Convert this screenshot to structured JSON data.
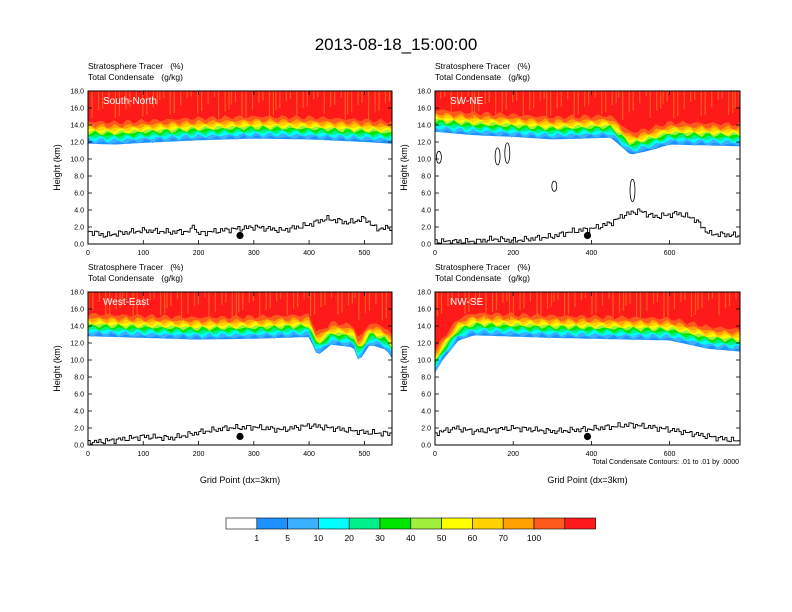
{
  "title": "2013-08-18_15:00:00",
  "colors": {
    "levels": [
      "#ffffff",
      "#1e90ff",
      "#3ab0ff",
      "#00ffff",
      "#00f08c",
      "#00e600",
      "#a0f03c",
      "#ffff00",
      "#ffd200",
      "#ffa000",
      "#ff5a1e",
      "#ff1a1a"
    ],
    "frame": "#000000"
  },
  "chart_data": [
    {
      "type": "heatmap",
      "panel_label": "South-North",
      "field_line1": "Stratosphere Tracer   (%)",
      "field_line2": "Total Condensate   (g/kg)",
      "ylabel": "Height (km)",
      "xlabel": "",
      "xlim": [
        0,
        550
      ],
      "ylim": [
        0,
        18
      ],
      "xticks": [
        "0",
        "100",
        "200",
        "300",
        "400",
        "500"
      ],
      "yticks": [
        "0.0",
        "2.0",
        "4.0",
        "6.0",
        "8.0",
        "10.0",
        "12.0",
        "14.0",
        "16.0",
        "18.0"
      ],
      "tracer_base_km": [
        [
          0,
          11.8
        ],
        [
          50,
          11.7
        ],
        [
          100,
          11.9
        ],
        [
          200,
          12.2
        ],
        [
          300,
          12.4
        ],
        [
          400,
          12.3
        ],
        [
          500,
          12.0
        ],
        [
          550,
          11.8
        ]
      ],
      "terrain_km": [
        [
          0,
          1.5
        ],
        [
          30,
          1.0
        ],
        [
          60,
          1.3
        ],
        [
          100,
          1.6
        ],
        [
          150,
          1.4
        ],
        [
          185,
          1.5
        ],
        [
          190,
          2.7
        ],
        [
          195,
          1.2
        ],
        [
          240,
          1.6
        ],
        [
          300,
          2.0
        ],
        [
          350,
          1.6
        ],
        [
          400,
          2.3
        ],
        [
          430,
          3.0
        ],
        [
          470,
          2.5
        ],
        [
          500,
          3.0
        ],
        [
          520,
          1.8
        ],
        [
          550,
          1.9
        ]
      ],
      "marker": [
        275,
        1.0
      ],
      "condensate_contours": []
    },
    {
      "type": "heatmap",
      "panel_label": "SW-NE",
      "field_line1": "Stratosphere Tracer   (%)",
      "field_line2": "Total Condensate   (g/kg)",
      "ylabel": "Height (km)",
      "xlabel": "",
      "xlim": [
        0,
        780
      ],
      "ylim": [
        0,
        18
      ],
      "xticks": [
        "0",
        "200",
        "400",
        "600"
      ],
      "yticks": [
        "0.0",
        "2.0",
        "4.0",
        "6.0",
        "8.0",
        "10.0",
        "12.0",
        "14.0",
        "16.0",
        "18.0"
      ],
      "tracer_base_km": [
        [
          0,
          13.2
        ],
        [
          100,
          12.8
        ],
        [
          200,
          12.6
        ],
        [
          300,
          12.3
        ],
        [
          450,
          12.5
        ],
        [
          500,
          10.5
        ],
        [
          550,
          11.0
        ],
        [
          600,
          11.7
        ],
        [
          780,
          11.5
        ]
      ],
      "terrain_km": [
        [
          0,
          0.3
        ],
        [
          100,
          0.3
        ],
        [
          150,
          0.6
        ],
        [
          200,
          0.4
        ],
        [
          300,
          0.9
        ],
        [
          350,
          1.5
        ],
        [
          400,
          1.8
        ],
        [
          450,
          2.5
        ],
        [
          480,
          3.4
        ],
        [
          520,
          3.9
        ],
        [
          560,
          3.2
        ],
        [
          620,
          3.6
        ],
        [
          660,
          3.0
        ],
        [
          700,
          1.2
        ],
        [
          780,
          1.0
        ]
      ],
      "marker": [
        390,
        1.0
      ],
      "condensate_contours": [
        [
          10,
          10.2,
          0.7
        ],
        [
          160,
          10.3,
          1.0
        ],
        [
          185,
          10.7,
          1.2
        ],
        [
          305,
          6.8,
          0.6
        ],
        [
          505,
          6.3,
          1.3
        ]
      ]
    },
    {
      "type": "heatmap",
      "panel_label": "West-East",
      "field_line1": "Stratosphere Tracer   (%)",
      "field_line2": "Total Condensate   (g/kg)",
      "ylabel": "Height (km)",
      "xlabel": "Grid Point (dx=3km)",
      "xlim": [
        0,
        550
      ],
      "ylim": [
        0,
        18
      ],
      "xticks": [
        "0",
        "100",
        "200",
        "300",
        "400",
        "500"
      ],
      "yticks": [
        "0.0",
        "2.0",
        "4.0",
        "6.0",
        "8.0",
        "10.0",
        "12.0",
        "14.0",
        "16.0",
        "18.0"
      ],
      "tracer_base_km": [
        [
          0,
          12.8
        ],
        [
          100,
          12.6
        ],
        [
          200,
          12.4
        ],
        [
          300,
          12.5
        ],
        [
          400,
          12.7
        ],
        [
          415,
          10.5
        ],
        [
          440,
          11.8
        ],
        [
          480,
          11.5
        ],
        [
          490,
          9.8
        ],
        [
          510,
          11.8
        ],
        [
          540,
          11.2
        ],
        [
          550,
          10.2
        ]
      ],
      "terrain_km": [
        [
          0,
          0.3
        ],
        [
          50,
          0.6
        ],
        [
          100,
          1.0
        ],
        [
          150,
          0.8
        ],
        [
          200,
          1.5
        ],
        [
          250,
          2.0
        ],
        [
          300,
          2.1
        ],
        [
          350,
          1.8
        ],
        [
          400,
          2.3
        ],
        [
          450,
          1.9
        ],
        [
          500,
          1.5
        ],
        [
          550,
          1.3
        ]
      ],
      "marker": [
        275,
        1.0
      ],
      "condensate_contours": []
    },
    {
      "type": "heatmap",
      "panel_label": "NW-SE",
      "field_line1": "Stratosphere Tracer   (%)",
      "field_line2": "Total Condensate   (g/kg)",
      "ylabel": "Height (km)",
      "xlabel": "Grid Point (dx=3km)",
      "xlim": [
        0,
        780
      ],
      "ylim": [
        0,
        18
      ],
      "xticks": [
        "0",
        "200",
        "400",
        "600"
      ],
      "yticks": [
        "0.0",
        "2.0",
        "4.0",
        "6.0",
        "8.0",
        "10.0",
        "12.0",
        "14.0",
        "16.0",
        "18.0"
      ],
      "tracer_base_km": [
        [
          0,
          8.5
        ],
        [
          20,
          10.0
        ],
        [
          60,
          12.3
        ],
        [
          100,
          12.9
        ],
        [
          300,
          12.6
        ],
        [
          500,
          12.4
        ],
        [
          600,
          12.3
        ],
        [
          650,
          11.8
        ],
        [
          700,
          11.3
        ],
        [
          780,
          11.0
        ]
      ],
      "terrain_km": [
        [
          0,
          1.4
        ],
        [
          50,
          2.0
        ],
        [
          100,
          1.6
        ],
        [
          200,
          2.0
        ],
        [
          300,
          1.6
        ],
        [
          400,
          1.9
        ],
        [
          500,
          2.4
        ],
        [
          600,
          1.8
        ],
        [
          700,
          1.0
        ],
        [
          780,
          0.4
        ]
      ],
      "marker": [
        390,
        1.0
      ],
      "condensate_contours": []
    }
  ],
  "contour_note": "Total Condensate Contours: .01 to .01 by .0000",
  "colorbar": {
    "labels": [
      "1",
      "5",
      "10",
      "20",
      "30",
      "40",
      "50",
      "60",
      "70",
      "100"
    ]
  }
}
